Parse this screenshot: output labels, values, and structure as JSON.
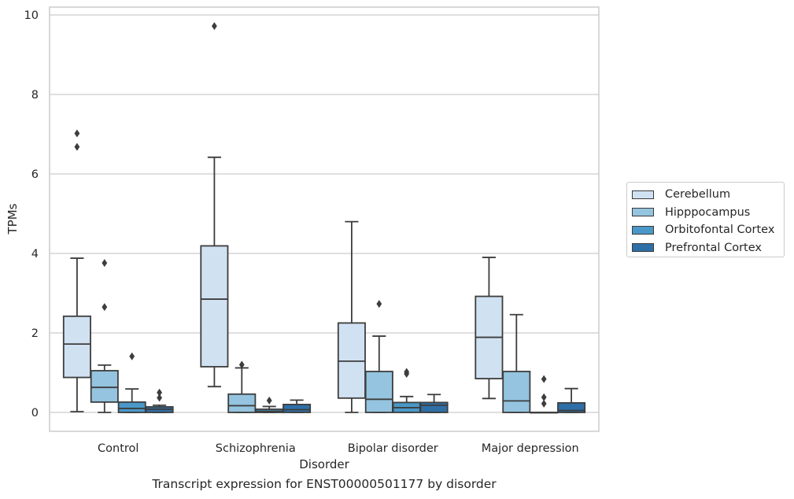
{
  "chart_data": {
    "type": "box",
    "title": "",
    "xlabel": "Disorder",
    "ylabel": "TPMs",
    "caption": "Transcript expression for ENST00000501177 by disorder",
    "ylim": [
      -0.45,
      10.2
    ],
    "yticks": [
      0,
      2,
      4,
      6,
      8,
      10
    ],
    "grid": true,
    "legend_position": "right",
    "categories": [
      "Control",
      "Schizophrenia",
      "Bipolar disorder",
      "Major depression"
    ],
    "series": [
      {
        "name": "Cerebellum",
        "color": "#d0e1f2",
        "boxes": [
          {
            "whislo": 0.02,
            "q1": 0.88,
            "med": 1.72,
            "q3": 2.42,
            "whishi": 3.88,
            "fliers": [
              6.68,
              7.02
            ]
          },
          {
            "whislo": 0.65,
            "q1": 1.15,
            "med": 2.85,
            "q3": 4.19,
            "whishi": 6.42,
            "fliers": [
              9.72
            ]
          },
          {
            "whislo": 0.0,
            "q1": 0.36,
            "med": 1.29,
            "q3": 2.25,
            "whishi": 4.8,
            "fliers": []
          },
          {
            "whislo": 0.35,
            "q1": 0.85,
            "med": 1.89,
            "q3": 2.92,
            "whishi": 3.9,
            "fliers": []
          }
        ]
      },
      {
        "name": "Hipppocampus",
        "color": "#94c4df",
        "boxes": [
          {
            "whislo": 0.0,
            "q1": 0.26,
            "med": 0.63,
            "q3": 1.05,
            "whishi": 1.19,
            "fliers": [
              2.65,
              3.76
            ]
          },
          {
            "whislo": 0.0,
            "q1": 0.0,
            "med": 0.17,
            "q3": 0.46,
            "whishi": 1.12,
            "fliers": [
              1.2
            ]
          },
          {
            "whislo": 0.0,
            "q1": 0.0,
            "med": 0.33,
            "q3": 1.03,
            "whishi": 1.92,
            "fliers": [
              2.73
            ]
          },
          {
            "whislo": 0.0,
            "q1": 0.0,
            "med": 0.29,
            "q3": 1.03,
            "whishi": 2.46,
            "fliers": []
          }
        ]
      },
      {
        "name": "Orbitofontal Cortex",
        "color": "#4a98c9",
        "boxes": [
          {
            "whislo": 0.0,
            "q1": 0.0,
            "med": 0.1,
            "q3": 0.26,
            "whishi": 0.59,
            "fliers": [
              1.41
            ]
          },
          {
            "whislo": 0.0,
            "q1": 0.0,
            "med": 0.03,
            "q3": 0.08,
            "whishi": 0.15,
            "fliers": [
              0.3
            ]
          },
          {
            "whislo": 0.0,
            "q1": 0.0,
            "med": 0.12,
            "q3": 0.25,
            "whishi": 0.4,
            "fliers": [
              0.97,
              1.02
            ]
          },
          {
            "whislo": 0.0,
            "q1": 0.0,
            "med": 0.0,
            "q3": 0.0,
            "whishi": 0.0,
            "fliers": [
              0.22,
              0.38,
              0.84
            ]
          }
        ]
      },
      {
        "name": "Prefrontal Cortex",
        "color": "#2e6fa7",
        "boxes": [
          {
            "whislo": 0.0,
            "q1": 0.0,
            "med": 0.08,
            "q3": 0.14,
            "whishi": 0.18,
            "fliers": [
              0.37,
              0.5
            ]
          },
          {
            "whislo": 0.0,
            "q1": 0.0,
            "med": 0.07,
            "q3": 0.2,
            "whishi": 0.31,
            "fliers": []
          },
          {
            "whislo": 0.0,
            "q1": 0.0,
            "med": 0.18,
            "q3": 0.25,
            "whishi": 0.45,
            "fliers": []
          },
          {
            "whislo": 0.0,
            "q1": 0.0,
            "med": 0.05,
            "q3": 0.24,
            "whishi": 0.6,
            "fliers": []
          }
        ]
      }
    ]
  }
}
